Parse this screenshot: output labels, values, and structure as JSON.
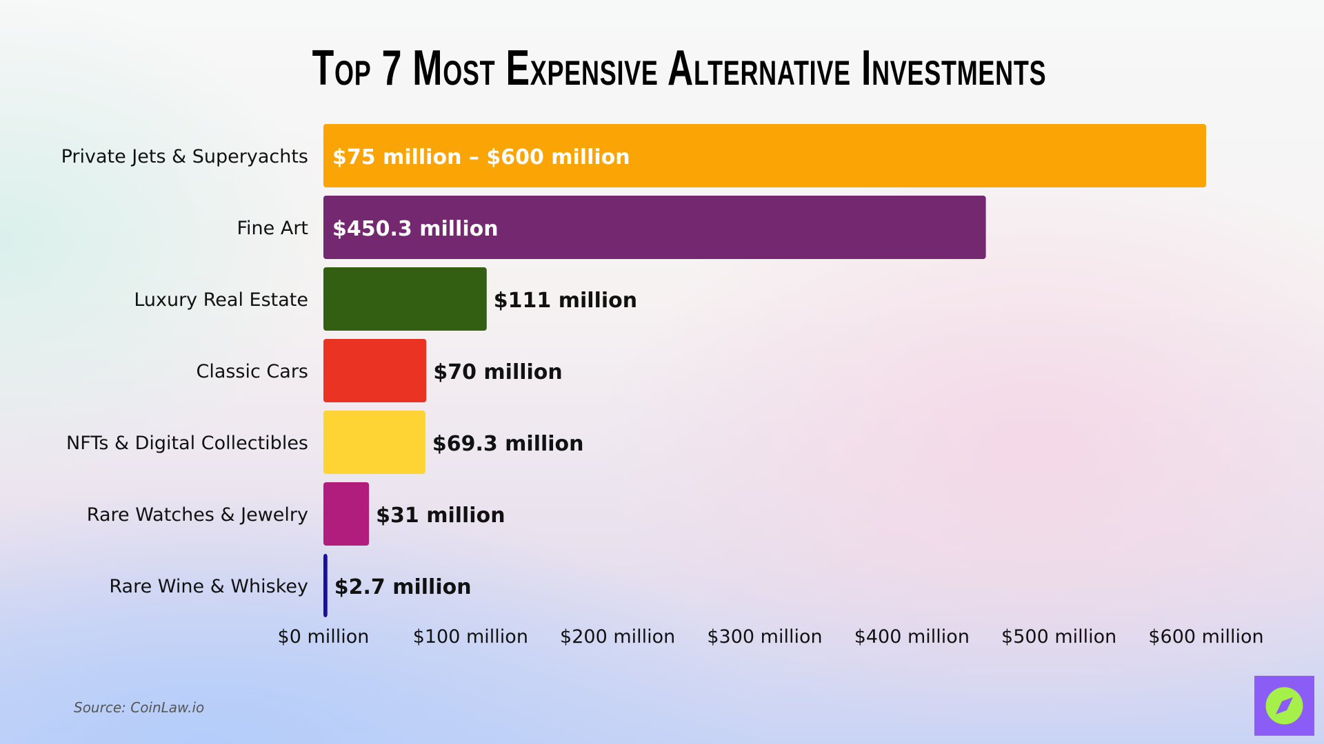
{
  "chart_data": {
    "type": "bar",
    "orientation": "horizontal",
    "title": "Top 7 Most Expensive Alternative Investments",
    "categories": [
      "Private Jets & Superyachts",
      "Fine Art",
      "Luxury Real Estate",
      "Classic Cars",
      "NFTs & Digital Collectibles",
      "Rare Watches & Jewelry",
      "Rare Wine & Whiskey"
    ],
    "values": [
      600,
      450.3,
      111,
      70,
      69.3,
      31,
      2.7
    ],
    "range_low": [
      75,
      null,
      null,
      null,
      null,
      null,
      null
    ],
    "data_labels": [
      "$75 million – $600 million",
      "$450.3 million",
      "$111 million",
      "$70 million",
      "$69.3 million",
      "$31 million",
      "$2.7 million"
    ],
    "colors": [
      "#fba406",
      "#732870",
      "#325f12",
      "#eb3323",
      "#fed434",
      "#b01d7c",
      "#1a0f99"
    ],
    "xlim": [
      0,
      600
    ],
    "xticks": [
      0,
      100,
      200,
      300,
      400,
      500,
      600
    ],
    "xtick_labels": [
      "$0 million",
      "$100 million",
      "$200 million",
      "$300 million",
      "$400 million",
      "$500 million",
      "$600 million"
    ],
    "xlabel": "",
    "ylabel": "",
    "grid": false,
    "unit": "million USD"
  },
  "source": "Source: CoinLaw.io",
  "logo": {
    "icon": "compass-icon",
    "bg": "#8b5cf6",
    "fg": "#a6f04a"
  }
}
